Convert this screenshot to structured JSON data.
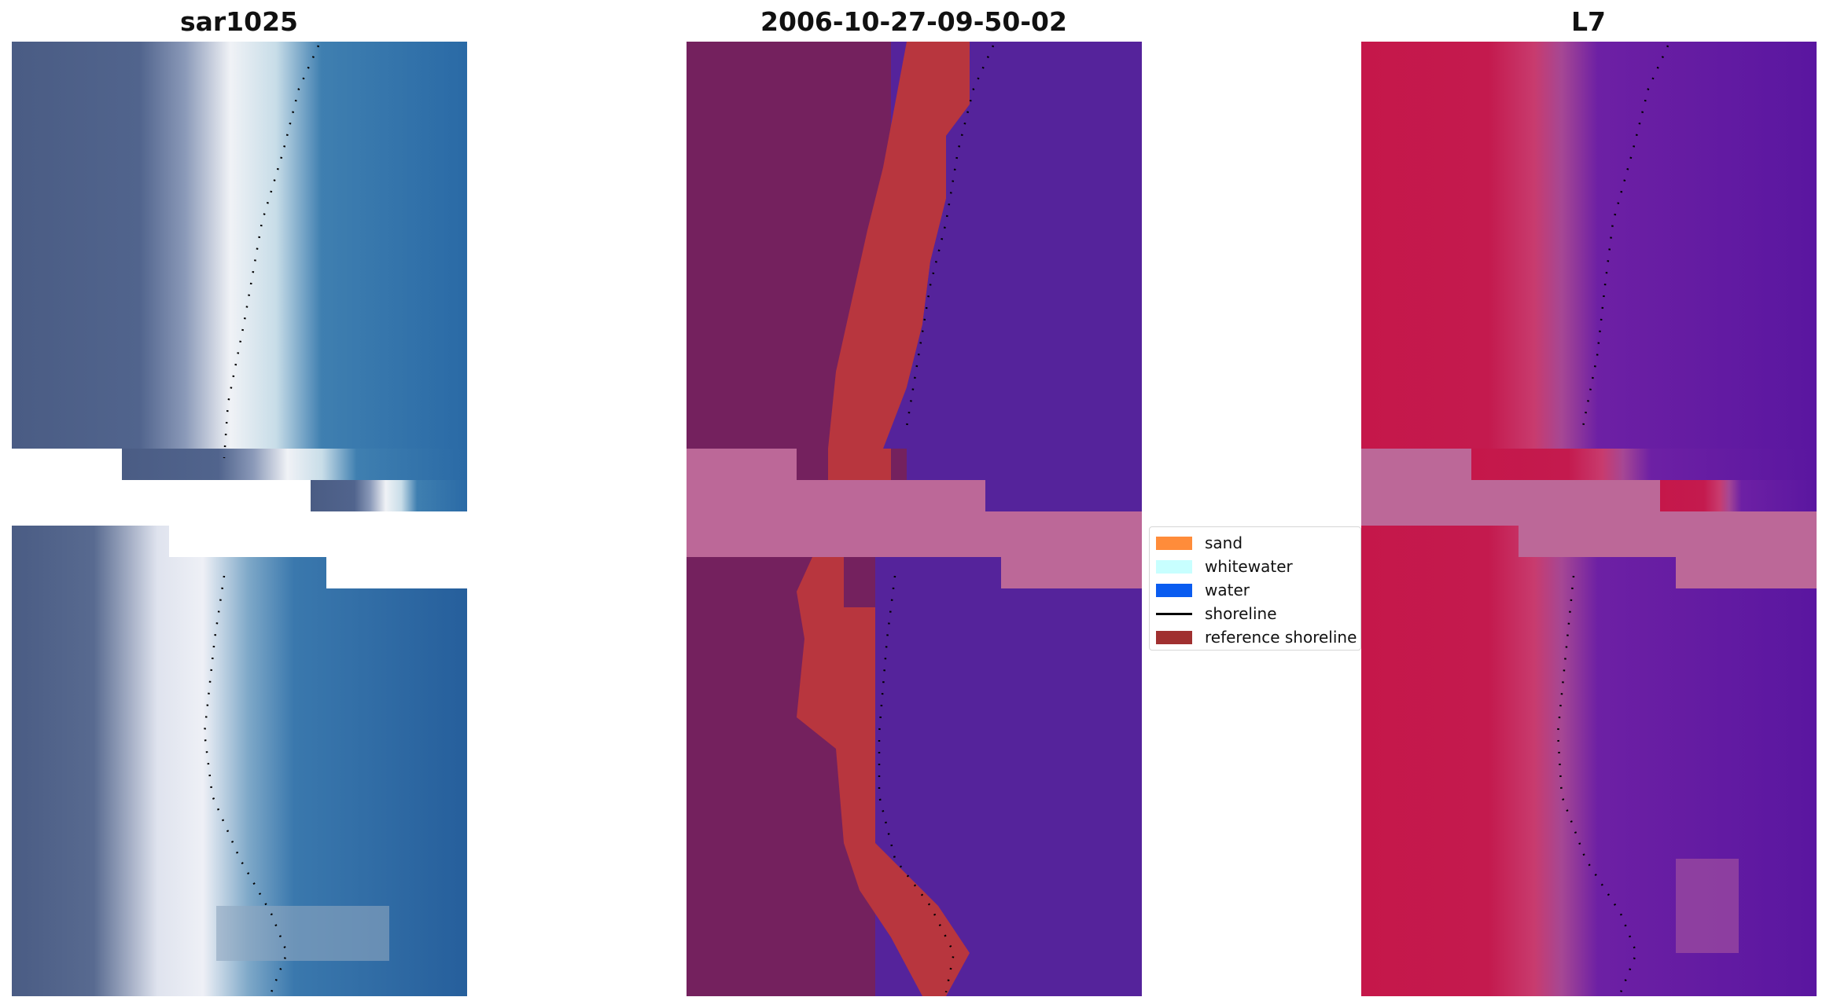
{
  "figure": {
    "panel_titles": [
      "sar1025",
      "2006-10-27-09-50-02",
      "L7"
    ],
    "legend": [
      {
        "label": "sand",
        "color": "#ff8c3a",
        "kind": "patch"
      },
      {
        "label": "whitewater",
        "color": "#c8ffff",
        "kind": "patch"
      },
      {
        "label": "water",
        "color": "#0a5cf0",
        "kind": "patch"
      },
      {
        "label": "shoreline",
        "color": "#000000",
        "kind": "line"
      },
      {
        "label": "reference shoreline",
        "color": "#a03030",
        "kind": "patch"
      }
    ],
    "colors": {
      "rgb_land": "#4a5c84",
      "rgb_sand": "#f0f2f6",
      "rgb_water": "#2a6aa6",
      "class_land": "#74215e",
      "class_sand": "#b8363e",
      "class_water": "#55239b",
      "class_nodata": "#bc6898",
      "mndwi_land": "#c5174a",
      "mndwi_water": "#5a16a0",
      "shoreline": "#000000"
    }
  }
}
